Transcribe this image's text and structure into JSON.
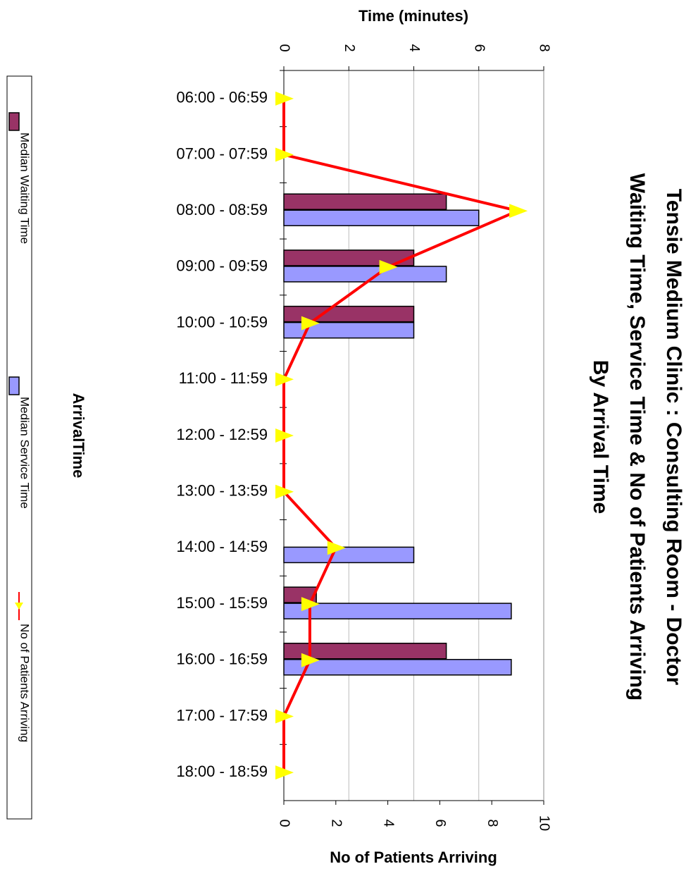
{
  "chart_data": {
    "type": "bar",
    "title": [
      "Tensie Medium Clinic : Consulting Room - Doctor",
      "Waiting Time, Service Time & No of Patients Arriving",
      "By Arrival Time"
    ],
    "x_label": "ArrivalTime",
    "y_label": "Time (minutes)",
    "y2_label": "No of Patients Arriving",
    "categories": [
      "06:00 - 06:59",
      "07:00 - 07:59",
      "08:00 - 08:59",
      "09:00 - 09:59",
      "10:00 - 10:59",
      "11:00 - 11:59",
      "12:00 - 12:59",
      "13:00 - 13:59",
      "14:00 - 14:59",
      "15:00 - 15:59",
      "16:00 - 16:59",
      "17:00 - 17:59",
      "18:00 - 18:59"
    ],
    "series": [
      {
        "name": "Median Waiting Time",
        "color": "#993366",
        "values": [
          null,
          null,
          5,
          4,
          4,
          null,
          null,
          null,
          0,
          1,
          5,
          null,
          null
        ]
      },
      {
        "name": "Median Service Time",
        "color": "#9999ff",
        "values": [
          null,
          null,
          6,
          5,
          4,
          null,
          null,
          null,
          4,
          7,
          7,
          null,
          null
        ]
      },
      {
        "name": "No of Patients Arriving",
        "type": "line",
        "axis": "y2",
        "color": "#ff0000",
        "marker_color": "#ffff00",
        "values": [
          0,
          0,
          9,
          4,
          1,
          0,
          0,
          0,
          2,
          1,
          1,
          0,
          0
        ]
      }
    ],
    "ylim": [
      0,
      8
    ],
    "yticks": [
      0,
      2,
      4,
      6,
      8
    ],
    "y2lim": [
      0,
      10
    ],
    "y2ticks": [
      0,
      2,
      4,
      6,
      8,
      10
    ],
    "grid": true
  }
}
